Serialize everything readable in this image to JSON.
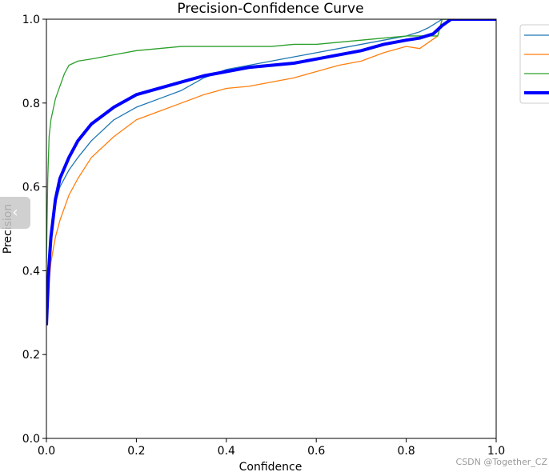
{
  "chart_data": {
    "type": "line",
    "title": "Precision-Confidence Curve",
    "xlabel": "Confidence",
    "ylabel": "Precision",
    "xlim": [
      0,
      1
    ],
    "ylim": [
      0,
      1
    ],
    "xticks": [
      "0.0",
      "0.2",
      "0.4",
      "0.6",
      "0.8",
      "1.0"
    ],
    "yticks": [
      "0.0",
      "0.2",
      "0.4",
      "0.6",
      "0.8",
      "1.0"
    ],
    "grid": false,
    "legend_position": "top-right",
    "series": [
      {
        "color": "#1f77b4",
        "line_width": "thin",
        "points": [
          [
            0.0,
            0.27
          ],
          [
            0.005,
            0.38
          ],
          [
            0.01,
            0.47
          ],
          [
            0.02,
            0.56
          ],
          [
            0.03,
            0.6
          ],
          [
            0.05,
            0.64
          ],
          [
            0.07,
            0.67
          ],
          [
            0.1,
            0.71
          ],
          [
            0.15,
            0.76
          ],
          [
            0.2,
            0.79
          ],
          [
            0.25,
            0.81
          ],
          [
            0.3,
            0.83
          ],
          [
            0.35,
            0.86
          ],
          [
            0.4,
            0.88
          ],
          [
            0.45,
            0.89
          ],
          [
            0.5,
            0.9
          ],
          [
            0.55,
            0.91
          ],
          [
            0.6,
            0.92
          ],
          [
            0.65,
            0.93
          ],
          [
            0.7,
            0.94
          ],
          [
            0.75,
            0.95
          ],
          [
            0.8,
            0.96
          ],
          [
            0.83,
            0.97
          ],
          [
            0.85,
            0.98
          ],
          [
            0.88,
            1.0
          ],
          [
            1.0,
            1.0
          ]
        ]
      },
      {
        "color": "#ff7f0e",
        "line_width": "thin",
        "points": [
          [
            0.0,
            0.27
          ],
          [
            0.005,
            0.36
          ],
          [
            0.01,
            0.42
          ],
          [
            0.02,
            0.48
          ],
          [
            0.03,
            0.52
          ],
          [
            0.05,
            0.58
          ],
          [
            0.07,
            0.62
          ],
          [
            0.1,
            0.67
          ],
          [
            0.15,
            0.72
          ],
          [
            0.2,
            0.76
          ],
          [
            0.25,
            0.78
          ],
          [
            0.3,
            0.8
          ],
          [
            0.35,
            0.82
          ],
          [
            0.4,
            0.835
          ],
          [
            0.45,
            0.84
          ],
          [
            0.5,
            0.85
          ],
          [
            0.55,
            0.86
          ],
          [
            0.6,
            0.875
          ],
          [
            0.65,
            0.89
          ],
          [
            0.7,
            0.9
          ],
          [
            0.75,
            0.92
          ],
          [
            0.8,
            0.935
          ],
          [
            0.83,
            0.93
          ],
          [
            0.85,
            0.945
          ],
          [
            0.87,
            0.96
          ],
          [
            0.88,
            1.0
          ],
          [
            1.0,
            1.0
          ]
        ]
      },
      {
        "color": "#2ca02c",
        "line_width": "thin",
        "points": [
          [
            0.0,
            0.42
          ],
          [
            0.003,
            0.62
          ],
          [
            0.006,
            0.72
          ],
          [
            0.01,
            0.76
          ],
          [
            0.02,
            0.81
          ],
          [
            0.03,
            0.84
          ],
          [
            0.04,
            0.87
          ],
          [
            0.05,
            0.89
          ],
          [
            0.07,
            0.9
          ],
          [
            0.1,
            0.905
          ],
          [
            0.15,
            0.915
          ],
          [
            0.2,
            0.925
          ],
          [
            0.25,
            0.93
          ],
          [
            0.3,
            0.935
          ],
          [
            0.35,
            0.935
          ],
          [
            0.4,
            0.935
          ],
          [
            0.45,
            0.935
          ],
          [
            0.5,
            0.935
          ],
          [
            0.55,
            0.94
          ],
          [
            0.6,
            0.94
          ],
          [
            0.65,
            0.945
          ],
          [
            0.7,
            0.95
          ],
          [
            0.75,
            0.955
          ],
          [
            0.8,
            0.96
          ],
          [
            0.85,
            0.96
          ],
          [
            0.87,
            0.96
          ],
          [
            0.88,
            1.0
          ],
          [
            1.0,
            1.0
          ]
        ]
      },
      {
        "color": "#0000ff",
        "line_width": "thick",
        "points": [
          [
            0.0,
            0.27
          ],
          [
            0.005,
            0.4
          ],
          [
            0.01,
            0.48
          ],
          [
            0.02,
            0.57
          ],
          [
            0.03,
            0.62
          ],
          [
            0.05,
            0.67
          ],
          [
            0.07,
            0.71
          ],
          [
            0.1,
            0.75
          ],
          [
            0.15,
            0.79
          ],
          [
            0.2,
            0.82
          ],
          [
            0.25,
            0.835
          ],
          [
            0.3,
            0.85
          ],
          [
            0.35,
            0.865
          ],
          [
            0.4,
            0.875
          ],
          [
            0.45,
            0.885
          ],
          [
            0.5,
            0.89
          ],
          [
            0.55,
            0.895
          ],
          [
            0.6,
            0.905
          ],
          [
            0.65,
            0.915
          ],
          [
            0.7,
            0.925
          ],
          [
            0.75,
            0.94
          ],
          [
            0.8,
            0.95
          ],
          [
            0.83,
            0.955
          ],
          [
            0.86,
            0.965
          ],
          [
            0.88,
            0.985
          ],
          [
            0.9,
            1.0
          ],
          [
            1.0,
            1.0
          ]
        ]
      }
    ]
  },
  "watermark": "CSDN @Together_CZ",
  "ui": {
    "collapse_glyph": "‹"
  }
}
